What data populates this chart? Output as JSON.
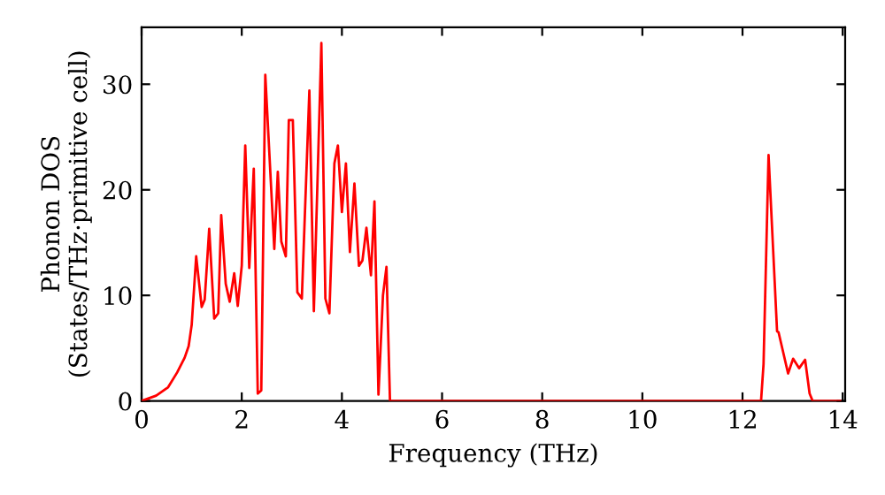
{
  "chart_data": {
    "type": "line",
    "xlabel": "Frequency (THz)",
    "ylabel": "Phonon DOS\n(States/THz·primitive cell)",
    "xlim": [
      0,
      14.05
    ],
    "ylim": [
      0,
      35.4
    ],
    "xticks": [
      0,
      2,
      4,
      6,
      8,
      10,
      12,
      14
    ],
    "yticks": [
      0,
      10,
      20,
      30
    ],
    "grid": false,
    "legend": false,
    "marker": "none",
    "line_style": "solid",
    "series": [
      {
        "color": "#ff0000",
        "x": [
          0,
          0.29,
          0.53,
          0.71,
          0.86,
          0.94,
          1.0,
          1.09,
          1.2,
          1.26,
          1.35,
          1.45,
          1.53,
          1.59,
          1.68,
          1.76,
          1.85,
          1.92,
          2.0,
          2.07,
          2.15,
          2.24,
          2.32,
          2.39,
          2.47,
          2.65,
          2.72,
          2.79,
          2.88,
          2.94,
          3.02,
          3.11,
          3.2,
          3.35,
          3.44,
          3.59,
          3.67,
          3.75,
          3.85,
          3.92,
          4.0,
          4.08,
          4.16,
          4.25,
          4.34,
          4.41,
          4.49,
          4.58,
          4.65,
          4.73,
          4.82,
          4.89,
          4.96,
          12.37,
          12.42,
          12.52,
          12.69,
          12.72,
          12.91,
          13.01,
          13.13,
          13.25,
          13.34,
          13.4,
          13.95
        ],
        "values": [
          0,
          0.5,
          1.3,
          2.7,
          4.1,
          5.2,
          7.2,
          13.7,
          8.9,
          9.6,
          16.3,
          7.8,
          8.3,
          17.6,
          11.1,
          9.4,
          12.1,
          9.0,
          12.8,
          24.2,
          12.6,
          22.0,
          0.7,
          1.0,
          30.9,
          14.4,
          21.7,
          15.1,
          13.7,
          26.6,
          26.6,
          10.3,
          9.7,
          29.4,
          8.5,
          33.9,
          9.7,
          8.3,
          22.5,
          24.2,
          17.9,
          22.5,
          14.1,
          20.6,
          12.8,
          13.3,
          16.4,
          11.9,
          18.9,
          0.6,
          10.0,
          12.7,
          0,
          0,
          3.5,
          23.3,
          6.6,
          6.5,
          2.6,
          4.0,
          3.1,
          3.9,
          0.7,
          0,
          0
        ]
      }
    ]
  }
}
